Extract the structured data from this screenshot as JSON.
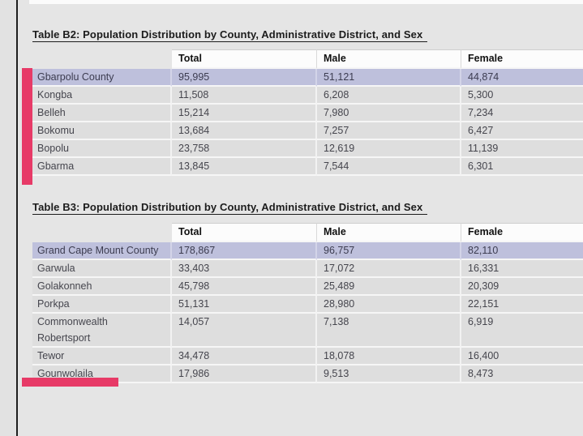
{
  "page": {
    "background_color": "#e5e5e5",
    "accent_pink": "#e73a67",
    "highlight_color": "#bec0dc"
  },
  "tableB2": {
    "title": "Table B2: Population Distribution by County, Administrative District, and Sex",
    "columns": [
      "",
      "Total",
      "Male",
      "Female"
    ],
    "rows": [
      {
        "name": "Gbarpolu County",
        "total": "95,995",
        "male": "51,121",
        "female": "44,874"
      },
      {
        "name": "Kongba",
        "total": "11,508",
        "male": "6,208",
        "female": "5,300"
      },
      {
        "name": "Belleh",
        "total": "15,214",
        "male": "7,980",
        "female": "7,234"
      },
      {
        "name": "Bokomu",
        "total": "13,684",
        "male": "7,257",
        "female": "6,427"
      },
      {
        "name": "Bopolu",
        "total": "23,758",
        "male": "12,619",
        "female": "11,139"
      },
      {
        "name": "Gbarma",
        "total": "13,845",
        "male": "7,544",
        "female": "6,301"
      }
    ]
  },
  "tableB3": {
    "title": "Table B3: Population Distribution by County, Administrative District, and Sex",
    "columns": [
      "",
      "Total",
      "Male",
      "Female"
    ],
    "rows": [
      {
        "name": "Grand Cape Mount County",
        "total": "178,867",
        "male": "96,757",
        "female": "82,110"
      },
      {
        "name": "Garwula",
        "total": "33,403",
        "male": "17,072",
        "female": "16,331"
      },
      {
        "name": "Golakonneh",
        "total": "45,798",
        "male": "25,489",
        "female": "20,309"
      },
      {
        "name": "Porkpa",
        "total": "51,131",
        "male": "28,980",
        "female": "22,151"
      },
      {
        "name": "Commonwealth Robertsport",
        "total": "14,057",
        "male": "7,138",
        "female": "6,919"
      },
      {
        "name": "Tewor",
        "total": "34,478",
        "male": "18,078",
        "female": "16,400"
      },
      {
        "name": "Gounwolaila",
        "total": "17,986",
        "male": "9,513",
        "female": "8,473"
      }
    ]
  }
}
